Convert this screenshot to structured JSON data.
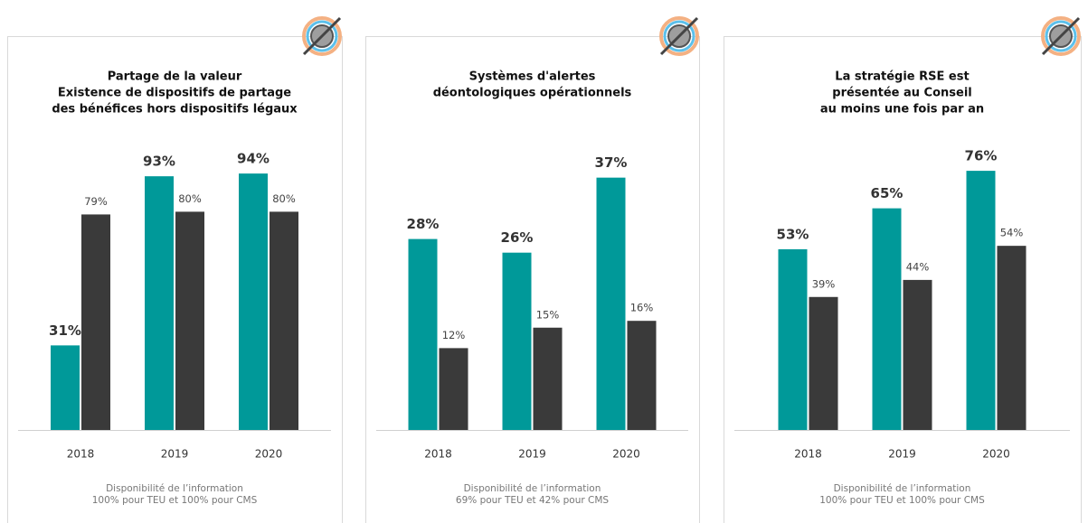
{
  "chart_data": [
    {
      "type": "bar",
      "title": [
        "Partage de la valeur",
        "Existence de dispositifs de partage",
        "des bénéfices hors dispositifs légaux"
      ],
      "categories": [
        "2018",
        "2019",
        "2020"
      ],
      "ylim": [
        0,
        100
      ],
      "series": [
        {
          "color": "#009999",
          "values": [
            31,
            93,
            94
          ],
          "value_labels": [
            "31%",
            "93%",
            "94%"
          ]
        },
        {
          "color": "#3a3a3a",
          "values": [
            79,
            80,
            80
          ],
          "value_labels": [
            "79%",
            "80%",
            "80%"
          ]
        }
      ],
      "footnote": [
        "Disponibilité de l’information",
        "100% pour TEU et 100% pour CMS"
      ]
    },
    {
      "type": "bar",
      "title": [
        "Systèmes d'alertes",
        "déontologiques opérationnels"
      ],
      "categories": [
        "2018",
        "2019",
        "2020"
      ],
      "ylim": [
        0,
        40
      ],
      "series": [
        {
          "color": "#009999",
          "values": [
            28,
            26,
            37
          ],
          "value_labels": [
            "28%",
            "26%",
            "37%"
          ]
        },
        {
          "color": "#3a3a3a",
          "values": [
            12,
            15,
            16
          ],
          "value_labels": [
            "12%",
            "15%",
            "16%"
          ]
        }
      ],
      "footnote": [
        "Disponibilité de l’information",
        "69% pour TEU et 42% pour CMS"
      ]
    },
    {
      "type": "bar",
      "title": [
        "La stratégie RSE est",
        "présentée au Conseil",
        "au moins une fois par an"
      ],
      "categories": [
        "2018",
        "2019",
        "2020"
      ],
      "ylim": [
        0,
        80
      ],
      "series": [
        {
          "color": "#009999",
          "values": [
            53,
            65,
            76
          ],
          "value_labels": [
            "53%",
            "65%",
            "76%"
          ]
        },
        {
          "color": "#3a3a3a",
          "values": [
            39,
            44,
            54
          ],
          "value_labels": [
            "39%",
            "44%",
            "54%"
          ]
        }
      ],
      "footnote": [
        "Disponibilité de l’information",
        "100% pour TEU et 100% pour CMS"
      ]
    }
  ]
}
